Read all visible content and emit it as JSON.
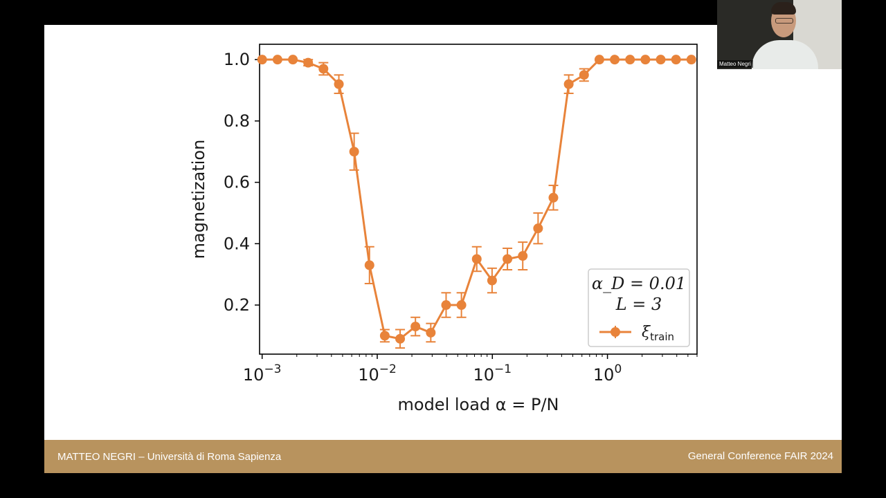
{
  "slide": {
    "footer_left": "MATTEO NEGRI – Università di Roma Sapienza",
    "footer_right": "General Conference FAIR 2024"
  },
  "webcam": {
    "name": "Matteo Negri"
  },
  "colors": {
    "series": "#e8833a",
    "footer": "#b8935e",
    "background": "#000000"
  },
  "chart_data": {
    "type": "line",
    "xlabel": "model load α = P/N",
    "ylabel": "magnetization",
    "x_scale": "log",
    "xlim": [
      0.00095,
      6.0
    ],
    "ylim": [
      0.04,
      1.05
    ],
    "x_ticks": [
      {
        "value": 0.001,
        "base": "10",
        "exp": "−3"
      },
      {
        "value": 0.01,
        "base": "10",
        "exp": "−2"
      },
      {
        "value": 0.1,
        "base": "10",
        "exp": "−1"
      },
      {
        "value": 1,
        "base": "10",
        "exp": "0"
      }
    ],
    "y_ticks": [
      0.2,
      0.4,
      0.6,
      0.8,
      1.0
    ],
    "y_tick_labels": [
      "0.2",
      "0.4",
      "0.6",
      "0.8",
      "1.0"
    ],
    "legend": {
      "position": "bottom-right",
      "line1": "α_D = 0.01",
      "line2": "L = 3",
      "entry_symbol": "ξ",
      "entry_subscript": "train"
    },
    "series": [
      {
        "x": [
          0.001,
          0.00136,
          0.00185,
          0.00251,
          0.00341,
          0.00464,
          0.0063,
          0.00856,
          0.01163,
          0.0158,
          0.02147,
          0.02918,
          0.03964,
          0.05387,
          0.0732,
          0.09946,
          0.1352,
          0.1837,
          0.2496,
          0.3391,
          0.4608,
          0.6262,
          0.8508,
          1.156,
          1.571,
          2.135,
          2.901,
          3.942,
          5.356
        ],
        "y": [
          1.0,
          1.0,
          1.0,
          0.99,
          0.97,
          0.92,
          0.7,
          0.33,
          0.1,
          0.09,
          0.13,
          0.11,
          0.2,
          0.2,
          0.35,
          0.28,
          0.35,
          0.36,
          0.45,
          0.55,
          0.92,
          0.95,
          1.0,
          1.0,
          1.0,
          1.0,
          1.0,
          1.0,
          1.0
        ],
        "err": [
          0.0,
          0.0,
          0.0,
          0.01,
          0.02,
          0.03,
          0.06,
          0.06,
          0.02,
          0.03,
          0.03,
          0.03,
          0.04,
          0.04,
          0.04,
          0.04,
          0.035,
          0.045,
          0.05,
          0.04,
          0.03,
          0.02,
          0.0,
          0.0,
          0.0,
          0.0,
          0.0,
          0.0,
          0.0
        ]
      }
    ]
  }
}
